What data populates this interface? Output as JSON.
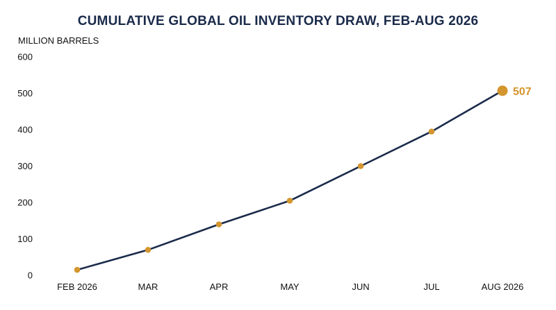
{
  "chart_data": {
    "type": "line",
    "title": "CUMULATIVE GLOBAL OIL INVENTORY DRAW, FEB-AUG 2026",
    "ylabel": "MILLION BARRELS",
    "xlabel": "",
    "categories": [
      "FEB 2026",
      "MAR",
      "APR",
      "MAY",
      "JUN",
      "JUL",
      "AUG 2026"
    ],
    "series": [
      {
        "values": [
          15,
          70,
          140,
          205,
          300,
          395,
          507
        ]
      }
    ],
    "ylim": [
      0,
      600
    ],
    "yticks": [
      0,
      100,
      200,
      300,
      400,
      500,
      600
    ],
    "grid": false,
    "end_label": "507",
    "line_color": "#1a2a4a",
    "marker_color": "#d4962e"
  }
}
